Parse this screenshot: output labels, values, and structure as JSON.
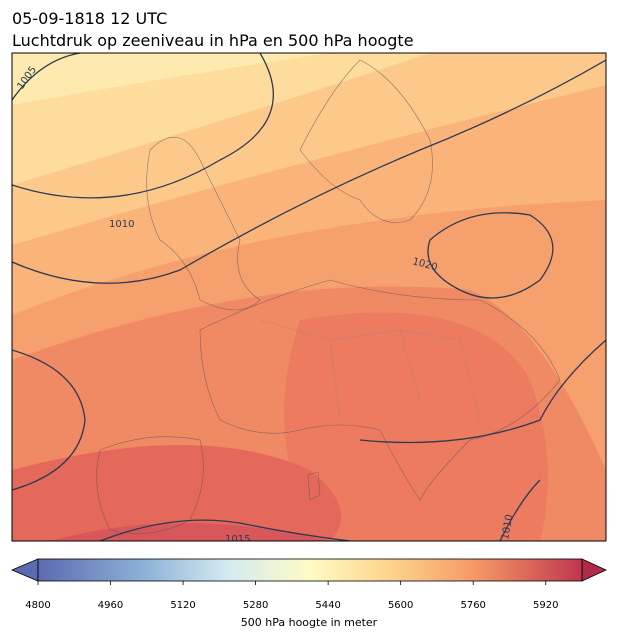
{
  "header": {
    "date": "05-09-1818 12 UTC",
    "title": "Luchtdruk op zeeniveau in hPa en 500 hPa hoogte"
  },
  "map": {
    "isobar_labels": [
      "1005",
      "1010",
      "1020",
      "1015",
      "1010"
    ]
  },
  "colorbar": {
    "label": "500 hPa hoogte in meter",
    "range": [
      4800,
      6000
    ],
    "ticks": [
      4800,
      4960,
      5120,
      5280,
      5440,
      5600,
      5760,
      5920
    ]
  }
}
